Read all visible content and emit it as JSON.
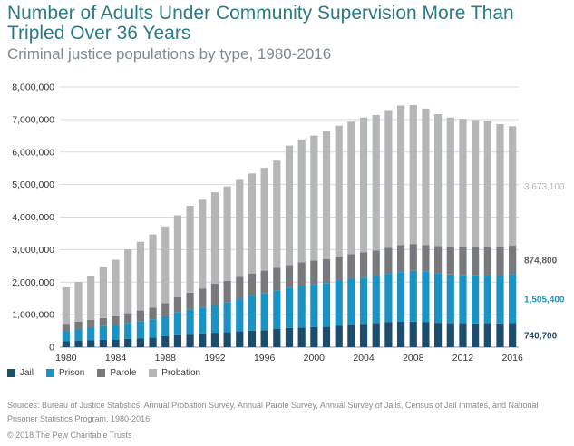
{
  "chart_data": {
    "type": "bar",
    "stacked": true,
    "title": "Number of Adults Under Community Supervision More Than Tripled Over 36 Years",
    "subtitle": "Criminal justice populations by type, 1980-2016",
    "x": [
      1980,
      1981,
      1982,
      1983,
      1984,
      1985,
      1986,
      1987,
      1988,
      1989,
      1990,
      1991,
      1992,
      1993,
      1994,
      1995,
      1996,
      1997,
      1998,
      1999,
      2000,
      2001,
      2002,
      2003,
      2004,
      2005,
      2006,
      2007,
      2008,
      2009,
      2010,
      2011,
      2012,
      2013,
      2014,
      2015,
      2016
    ],
    "x_tick_labels": [
      "1980",
      "1984",
      "1988",
      "1992",
      "1996",
      "2000",
      "2004",
      "2008",
      "2012",
      "2016"
    ],
    "y_tick_labels": [
      "0",
      "1,000,000",
      "2,000,000",
      "3,000,000",
      "4,000,000",
      "5,000,000",
      "6,000,000",
      "7,000,000",
      "8,000,000"
    ],
    "ylim": [
      0,
      8000000
    ],
    "grid": true,
    "legend_position": "bottom-left",
    "series": [
      {
        "name": "Jail",
        "color": "#1d4d6b",
        "values": [
          182000,
          196000,
          210000,
          224000,
          234000,
          256000,
          274000,
          296000,
          343000,
          395000,
          405000,
          426000,
          444000,
          459000,
          486000,
          507000,
          518000,
          567000,
          592000,
          605000,
          621000,
          631000,
          665000,
          691000,
          713000,
          747000,
          766000,
          780000,
          785000,
          767000,
          749000,
          736000,
          744000,
          731000,
          744000,
          728000,
          740700
        ]
      },
      {
        "name": "Prison",
        "color": "#1a93c4",
        "values": [
          320000,
          360000,
          403000,
          424000,
          448000,
          488000,
          526000,
          560000,
          606000,
          683000,
          740000,
          790000,
          850000,
          910000,
          990000,
          1080000,
          1130000,
          1180000,
          1240000,
          1290000,
          1320000,
          1340000,
          1370000,
          1400000,
          1430000,
          1450000,
          1490000,
          1530000,
          1560000,
          1550000,
          1520000,
          1500000,
          1480000,
          1490000,
          1490000,
          1470000,
          1505400
        ]
      },
      {
        "name": "Parole",
        "color": "#78797d",
        "values": [
          220000,
          225000,
          224000,
          246000,
          266000,
          300000,
          326000,
          362000,
          408000,
          456000,
          531000,
          590000,
          658000,
          671000,
          690000,
          679000,
          705000,
          694000,
          696000,
          714000,
          723000,
          732000,
          750000,
          770000,
          772000,
          780000,
          798000,
          826000,
          828000,
          819000,
          840000,
          853000,
          851000,
          853000,
          856000,
          870000,
          874800
        ]
      },
      {
        "name": "Probation",
        "color": "#b5b6b8",
        "values": [
          1118000,
          1226000,
          1357000,
          1582000,
          1740000,
          1968000,
          2114000,
          2247000,
          2356000,
          2522000,
          2670000,
          2729000,
          2811000,
          2903000,
          2981000,
          3078000,
          3164000,
          3296000,
          3670000,
          3780000,
          3840000,
          3930000,
          4024000,
          4073000,
          4144000,
          4162000,
          4237000,
          4293000,
          4271000,
          4199000,
          4055000,
          3971000,
          3943000,
          3910000,
          3864000,
          3790000,
          3673100
        ]
      }
    ],
    "end_labels": [
      {
        "series": "Probation",
        "text": "3,673,100",
        "color": "#b5b6b8"
      },
      {
        "series": "Parole",
        "text": "874,800",
        "color": "#5f6066"
      },
      {
        "series": "Prison",
        "text": "1,505,400",
        "color": "#1a93c4"
      },
      {
        "series": "Jail",
        "text": "740,700",
        "color": "#1d4d6b"
      }
    ]
  },
  "legend": {
    "items": [
      {
        "label": "Jail",
        "color": "#1d4d6b"
      },
      {
        "label": "Prison",
        "color": "#1a93c4"
      },
      {
        "label": "Parole",
        "color": "#78797d"
      },
      {
        "label": "Probation",
        "color": "#b5b6b8"
      }
    ]
  },
  "footer": {
    "sources": "Sources: Bureau of Justice Statistics, Annual Probation Survey, Annual Parole Survey, Annual Survey of Jails, Census of Jail Inmates, and National Prisoner Statistics Program, 1980-2016",
    "copyright": "© 2018 The Pew Charitable Trusts"
  }
}
